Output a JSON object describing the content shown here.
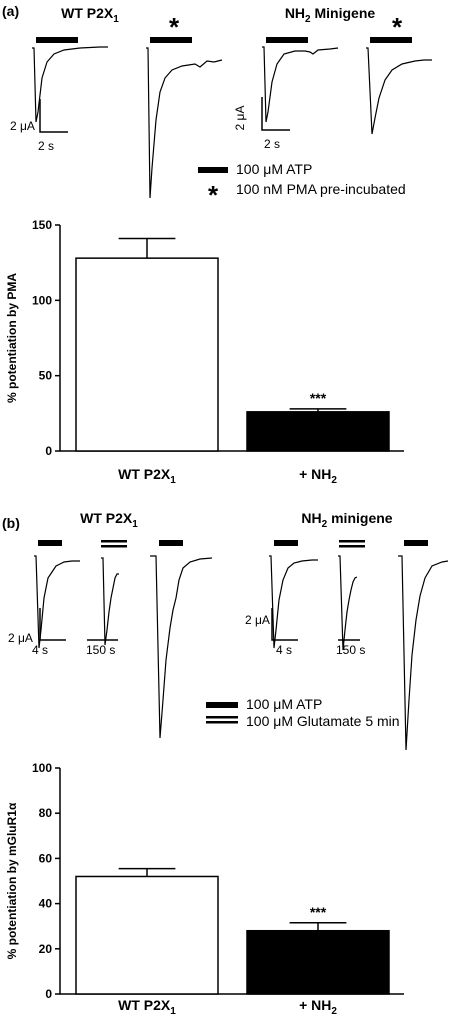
{
  "panels": [
    {
      "label": "(a)",
      "groups": [
        {
          "name": "WT P2X",
          "sub": "1",
          "suffix": ""
        },
        {
          "name": "NH",
          "sub": "2",
          "suffix": " Minigene"
        }
      ],
      "star": "*",
      "scale_y": "2 μA",
      "scale_x": "2 s",
      "legend": [
        {
          "marker": "bar",
          "text": "100 μM ATP"
        },
        {
          "marker": "star",
          "text": "100 nM PMA pre-incubated"
        }
      ]
    },
    {
      "label": "(b)",
      "groups": [
        {
          "name": "WT P2X",
          "sub": "1",
          "suffix": ""
        },
        {
          "name": "NH",
          "sub": "2",
          "suffix": " minigene"
        }
      ],
      "scale_y": "2 μA",
      "scale_x": [
        "4 s",
        "150 s"
      ],
      "legend": [
        {
          "marker": "bar",
          "text": "100 μM ATP"
        },
        {
          "marker": "double",
          "text": "100 μM Glutamate 5 min"
        }
      ]
    }
  ],
  "chart_data": [
    {
      "type": "bar",
      "categories": [
        {
          "name": "WT P2X",
          "sub": "1"
        },
        {
          "name": "+ NH",
          "sub": "2"
        }
      ],
      "values": [
        128,
        26
      ],
      "errors": [
        13,
        2
      ],
      "fills": [
        "#ffffff",
        "#000000"
      ],
      "significance": [
        "",
        "***"
      ],
      "ylabel": "% potentiation by PMA",
      "ylim": [
        0,
        150
      ],
      "yticks": [
        0,
        50,
        100,
        150
      ]
    },
    {
      "type": "bar",
      "categories": [
        {
          "name": "WT P2X",
          "sub": "1"
        },
        {
          "name": "+ NH",
          "sub": "2"
        }
      ],
      "values": [
        52,
        28
      ],
      "errors": [
        3.5,
        3.5
      ],
      "fills": [
        "#ffffff",
        "#000000"
      ],
      "significance": [
        "",
        "***"
      ],
      "ylabel": "% potentiation by mGluR1α",
      "ylim": [
        0,
        100
      ],
      "yticks": [
        0,
        20,
        40,
        60,
        80,
        100
      ]
    }
  ]
}
